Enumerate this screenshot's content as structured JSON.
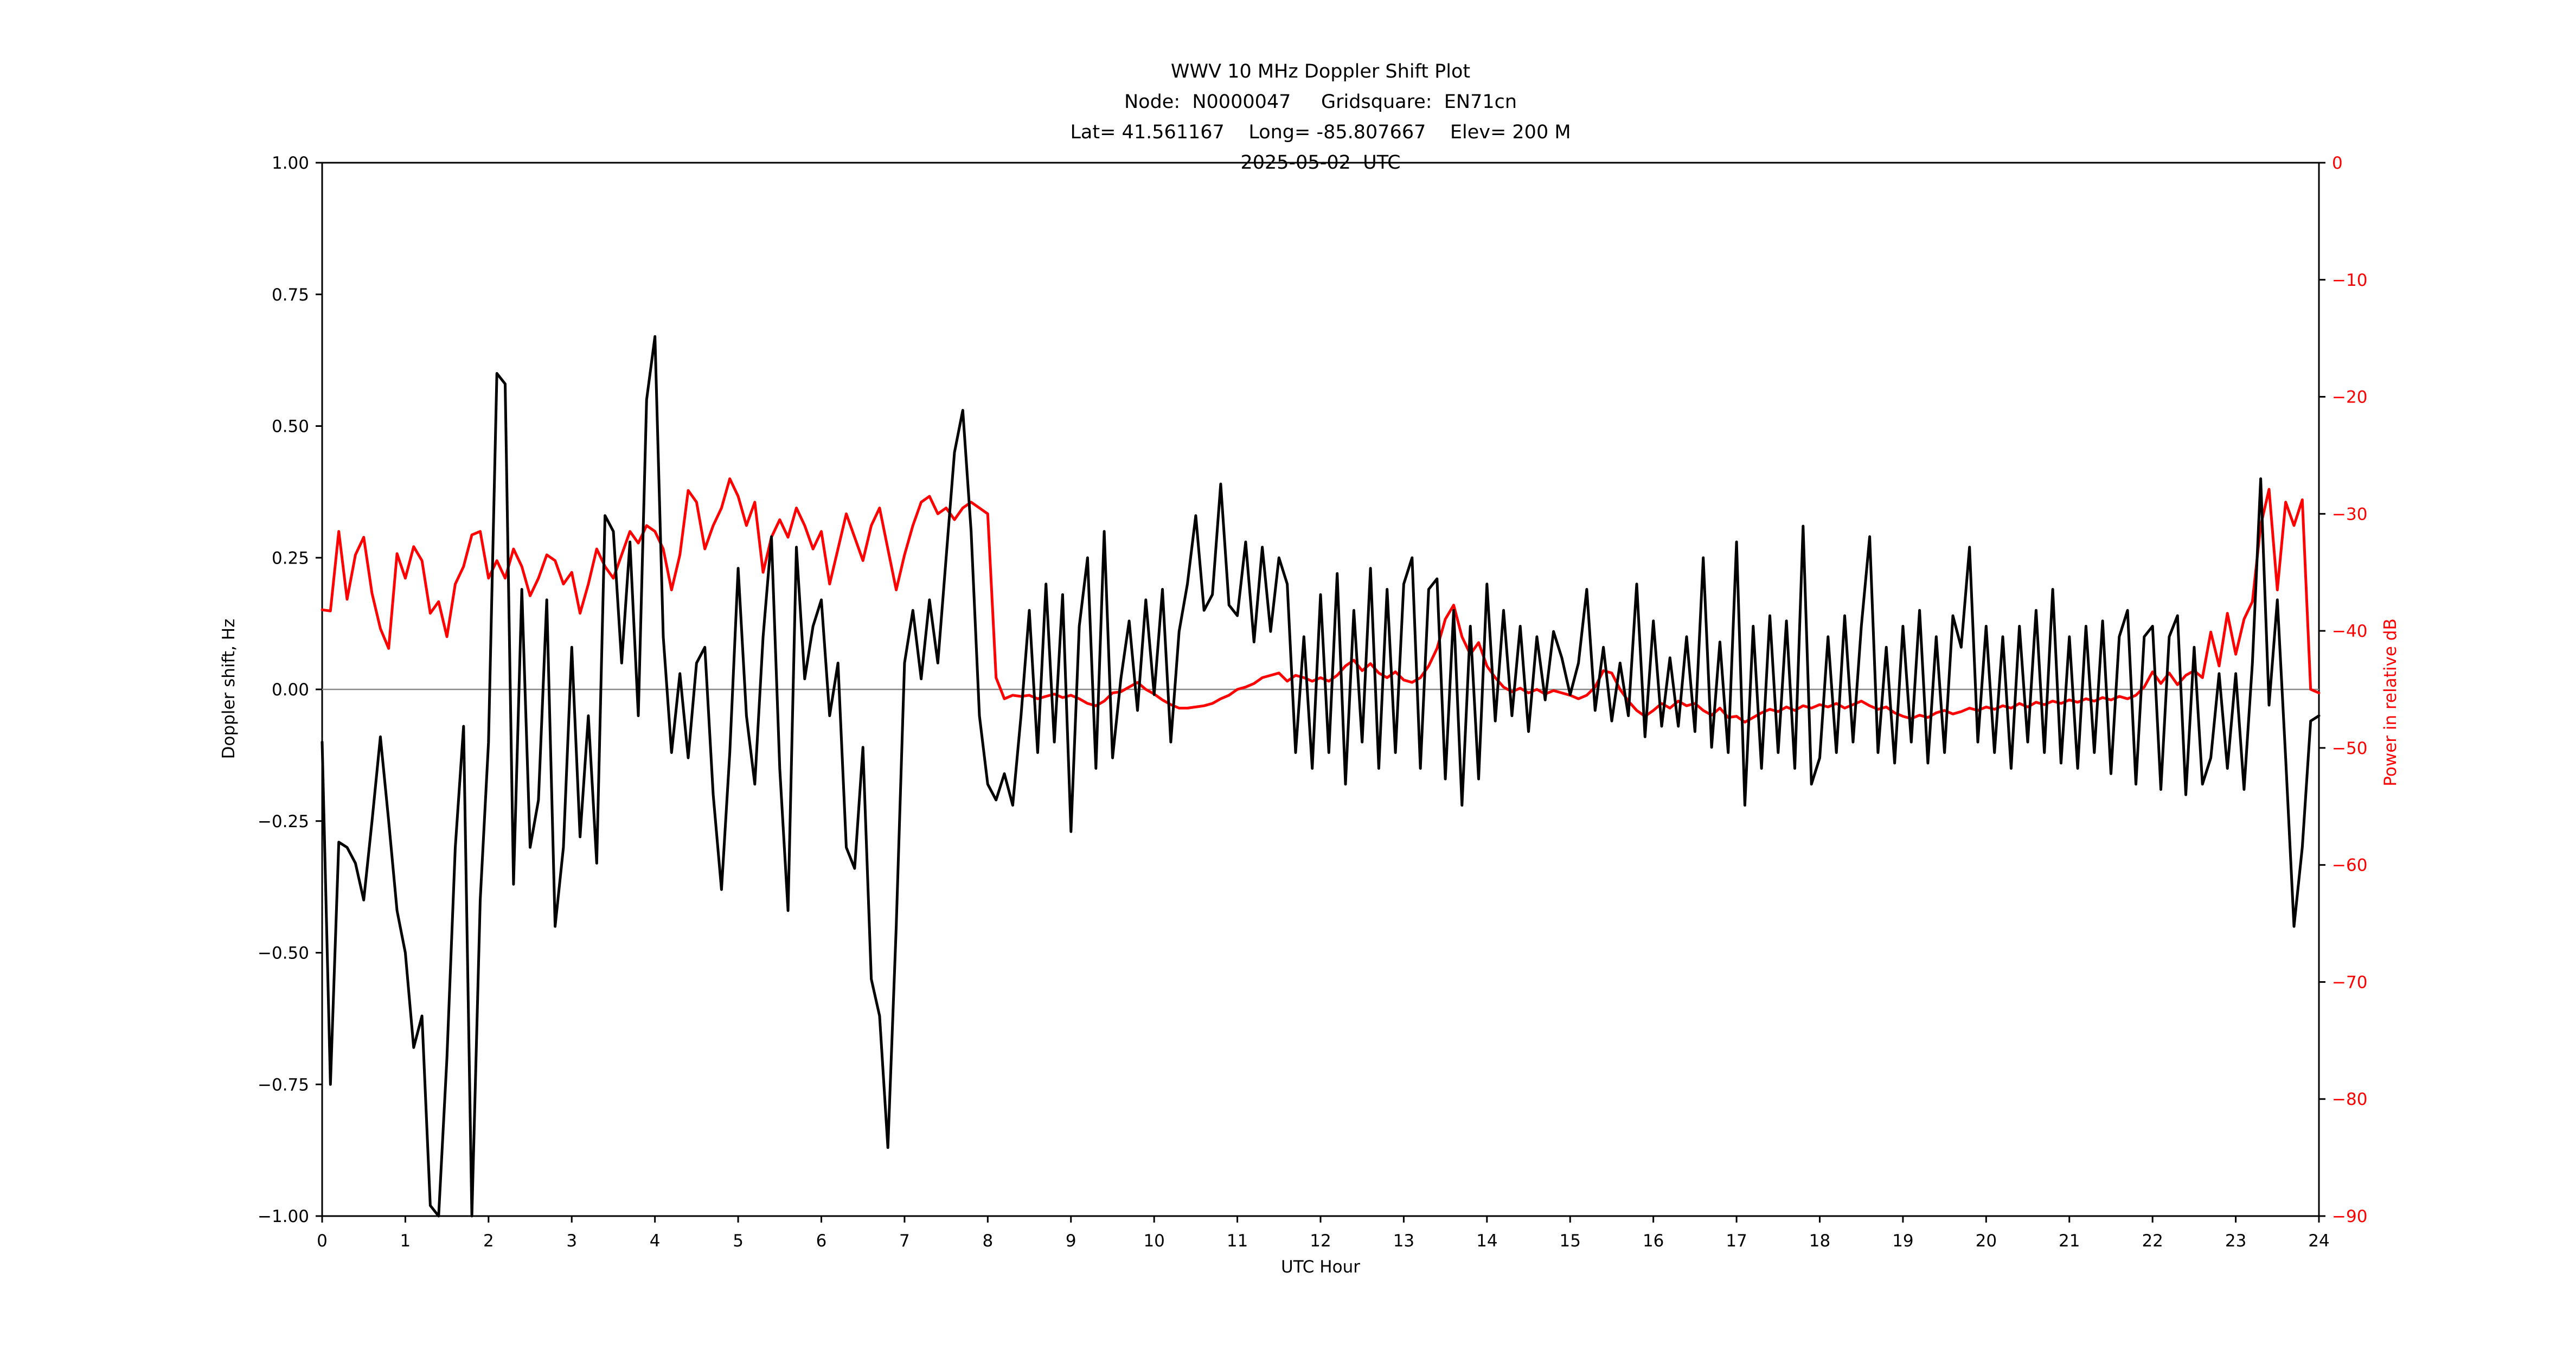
{
  "title": {
    "line1": "WWV 10 MHz Doppler Shift Plot",
    "line2": "Node:  N0000047     Gridsquare:  EN71cn",
    "line3": "Lat= 41.561167    Long= -85.807667    Elev= 200 M",
    "line4": "2025-05-02  UTC"
  },
  "colors": {
    "doppler_series": "#000000",
    "power_series": "#ff0000",
    "zero_line": "#888888",
    "axis": "#000000",
    "background": "#ffffff"
  },
  "chart_data": {
    "type": "line",
    "title": "WWV 10 MHz Doppler Shift Plot",
    "subtitle": [
      "Node:  N0000047     Gridsquare:  EN71cn",
      "Lat= 41.561167    Long= -85.807667    Elev= 200 M",
      "2025-05-02  UTC"
    ],
    "grid": false,
    "legend": "none",
    "x_axis": {
      "label": "UTC Hour",
      "min": 0,
      "max": 24,
      "tick_values": [
        0,
        1,
        2,
        3,
        4,
        5,
        6,
        7,
        8,
        9,
        10,
        11,
        12,
        13,
        14,
        15,
        16,
        17,
        18,
        19,
        20,
        21,
        22,
        23,
        24
      ],
      "tick_labels": [
        "0",
        "1",
        "2",
        "3",
        "4",
        "5",
        "6",
        "7",
        "8",
        "9",
        "10",
        "11",
        "12",
        "13",
        "14",
        "15",
        "16",
        "17",
        "18",
        "19",
        "20",
        "21",
        "22",
        "23",
        "24"
      ]
    },
    "left_axis": {
      "label": "Doppler shift, Hz",
      "min": -1.0,
      "max": 1.0,
      "tick_values": [
        1.0,
        0.75,
        0.5,
        0.25,
        0.0,
        -0.25,
        -0.5,
        -0.75,
        -1.0
      ],
      "tick_labels": [
        "1.00",
        "0.75",
        "0.50",
        "0.25",
        "0.00",
        "−0.25",
        "−0.50",
        "−0.75",
        "−1.00"
      ],
      "color": "#000000"
    },
    "right_axis": {
      "label": "Power in relative dB",
      "min": -90,
      "max": 0,
      "tick_values": [
        0,
        -10,
        -20,
        -30,
        -40,
        -50,
        -60,
        -70,
        -80,
        -90
      ],
      "tick_labels": [
        "0",
        "−10",
        "−20",
        "−30",
        "−40",
        "−50",
        "−60",
        "−70",
        "−80",
        "−90"
      ],
      "color": "#ff0000"
    },
    "zero_line": {
      "value": 0.0,
      "axis": "left",
      "color": "#888888"
    },
    "x_start": 0,
    "x_step": 0.1,
    "series": [
      {
        "name": "Doppler shift, Hz",
        "axis": "left",
        "color": "#000000",
        "values": [
          -0.1,
          -0.75,
          -0.29,
          -0.3,
          -0.33,
          -0.4,
          -0.25,
          -0.09,
          -0.25,
          -0.42,
          -0.5,
          -0.68,
          -0.62,
          -0.98,
          -1.0,
          -0.7,
          -0.3,
          -0.07,
          -1.0,
          -0.4,
          -0.1,
          0.6,
          0.58,
          -0.37,
          0.19,
          -0.3,
          -0.21,
          0.17,
          -0.45,
          -0.3,
          0.08,
          -0.28,
          -0.05,
          -0.33,
          0.33,
          0.3,
          0.05,
          0.28,
          -0.05,
          0.55,
          0.67,
          0.1,
          -0.12,
          0.03,
          -0.13,
          0.05,
          0.08,
          -0.2,
          -0.38,
          -0.12,
          0.23,
          -0.05,
          -0.18,
          0.1,
          0.29,
          -0.15,
          -0.42,
          0.27,
          0.02,
          0.12,
          0.17,
          -0.05,
          0.05,
          -0.3,
          -0.34,
          -0.11,
          -0.55,
          -0.62,
          -0.87,
          -0.45,
          0.05,
          0.15,
          0.02,
          0.17,
          0.05,
          0.25,
          0.45,
          0.53,
          0.3,
          -0.05,
          -0.18,
          -0.21,
          -0.16,
          -0.22,
          -0.05,
          0.15,
          -0.12,
          0.2,
          -0.1,
          0.18,
          -0.27,
          0.12,
          0.25,
          -0.15,
          0.3,
          -0.13,
          0.02,
          0.13,
          -0.04,
          0.17,
          -0.01,
          0.19,
          -0.1,
          0.11,
          0.2,
          0.33,
          0.15,
          0.18,
          0.39,
          0.16,
          0.14,
          0.28,
          0.09,
          0.27,
          0.11,
          0.25,
          0.2,
          -0.12,
          0.1,
          -0.15,
          0.18,
          -0.12,
          0.22,
          -0.18,
          0.15,
          -0.1,
          0.23,
          -0.15,
          0.19,
          -0.12,
          0.2,
          0.25,
          -0.15,
          0.19,
          0.21,
          -0.17,
          0.15,
          -0.22,
          0.12,
          -0.17,
          0.2,
          -0.06,
          0.15,
          -0.05,
          0.12,
          -0.08,
          0.1,
          -0.02,
          0.11,
          0.06,
          -0.01,
          0.05,
          0.19,
          -0.04,
          0.08,
          -0.06,
          0.05,
          -0.05,
          0.2,
          -0.09,
          0.13,
          -0.07,
          0.06,
          -0.07,
          0.1,
          -0.08,
          0.25,
          -0.11,
          0.09,
          -0.12,
          0.28,
          -0.22,
          0.12,
          -0.15,
          0.14,
          -0.12,
          0.13,
          -0.15,
          0.31,
          -0.18,
          -0.13,
          0.1,
          -0.12,
          0.14,
          -0.1,
          0.12,
          0.29,
          -0.12,
          0.08,
          -0.14,
          0.12,
          -0.1,
          0.15,
          -0.14,
          0.1,
          -0.12,
          0.14,
          0.08,
          0.27,
          -0.1,
          0.12,
          -0.12,
          0.1,
          -0.15,
          0.12,
          -0.1,
          0.15,
          -0.12,
          0.19,
          -0.14,
          0.1,
          -0.15,
          0.12,
          -0.12,
          0.13,
          -0.16,
          0.1,
          0.15,
          -0.18,
          0.1,
          0.12,
          -0.19,
          0.1,
          0.14,
          -0.2,
          0.08,
          -0.18,
          -0.13,
          0.03,
          -0.15,
          0.03,
          -0.19,
          0.05,
          0.4,
          -0.03,
          0.17,
          -0.13,
          -0.45,
          -0.3,
          -0.06,
          -0.05
        ]
      },
      {
        "name": "Power in relative dB",
        "axis": "right",
        "color": "#ff0000",
        "values": [
          -38.2,
          -38.3,
          -31.5,
          -37.3,
          -33.5,
          -32.0,
          -36.8,
          -39.8,
          -41.5,
          -33.4,
          -35.5,
          -32.8,
          -34.0,
          -38.5,
          -37.5,
          -40.5,
          -36.0,
          -34.5,
          -31.8,
          -31.5,
          -35.5,
          -34.0,
          -35.5,
          -33.0,
          -34.5,
          -37.0,
          -35.5,
          -33.5,
          -34.0,
          -36.0,
          -35.0,
          -38.5,
          -36.0,
          -33.0,
          -34.5,
          -35.5,
          -33.5,
          -31.5,
          -32.5,
          -31.0,
          -31.5,
          -33.0,
          -36.5,
          -33.5,
          -28.0,
          -29.0,
          -33.0,
          -31.0,
          -29.5,
          -27.0,
          -28.5,
          -31.0,
          -29.0,
          -35.0,
          -32.0,
          -30.5,
          -32.0,
          -29.5,
          -31.0,
          -33.0,
          -31.5,
          -36.0,
          -33.0,
          -30.0,
          -32.0,
          -34.0,
          -31.0,
          -29.5,
          -33.0,
          -36.5,
          -33.5,
          -31.0,
          -29.0,
          -28.5,
          -30.0,
          -29.5,
          -30.5,
          -29.5,
          -29.0,
          -29.5,
          -30.0,
          -44.0,
          -45.8,
          -45.5,
          -45.6,
          -45.5,
          -45.8,
          -45.6,
          -45.4,
          -45.7,
          -45.5,
          -45.8,
          -46.2,
          -46.4,
          -46.0,
          -45.3,
          -45.2,
          -44.8,
          -44.4,
          -45.0,
          -45.4,
          -45.9,
          -46.3,
          -46.6,
          -46.6,
          -46.5,
          -46.4,
          -46.2,
          -45.8,
          -45.5,
          -45.0,
          -44.8,
          -44.5,
          -44.0,
          -43.8,
          -43.6,
          -44.3,
          -43.8,
          -44.0,
          -44.3,
          -44.0,
          -44.3,
          -43.8,
          -43.0,
          -42.5,
          -43.4,
          -42.8,
          -43.6,
          -44.0,
          -43.5,
          -44.2,
          -44.4,
          -44.0,
          -43.0,
          -41.5,
          -39.0,
          -37.8,
          -40.5,
          -42.0,
          -41.0,
          -43.0,
          -44.0,
          -44.8,
          -45.2,
          -44.9,
          -45.3,
          -45.0,
          -45.4,
          -45.1,
          -45.3,
          -45.5,
          -45.8,
          -45.5,
          -44.8,
          -43.4,
          -43.6,
          -45.0,
          -46.0,
          -46.8,
          -47.3,
          -46.8,
          -46.2,
          -46.6,
          -46.0,
          -46.4,
          -46.2,
          -46.8,
          -47.2,
          -46.6,
          -47.4,
          -47.3,
          -47.8,
          -47.4,
          -47.0,
          -46.7,
          -46.9,
          -46.5,
          -46.8,
          -46.4,
          -46.6,
          -46.3,
          -46.5,
          -46.2,
          -46.6,
          -46.3,
          -46.0,
          -46.4,
          -46.7,
          -46.5,
          -47.0,
          -47.3,
          -47.5,
          -47.2,
          -47.4,
          -47.0,
          -46.8,
          -47.1,
          -46.9,
          -46.6,
          -46.8,
          -46.5,
          -46.7,
          -46.4,
          -46.6,
          -46.2,
          -46.5,
          -46.1,
          -46.3,
          -46.0,
          -46.2,
          -45.9,
          -46.1,
          -45.8,
          -46.0,
          -45.7,
          -45.9,
          -45.6,
          -45.8,
          -45.5,
          -44.8,
          -43.5,
          -44.5,
          -43.6,
          -44.6,
          -43.8,
          -43.4,
          -44.0,
          -40.1,
          -43.0,
          -38.5,
          -42.0,
          -39.0,
          -37.5,
          -31.0,
          -27.9,
          -36.5,
          -29.0,
          -31.0,
          -28.8,
          -45.0,
          -45.3
        ]
      }
    ]
  }
}
